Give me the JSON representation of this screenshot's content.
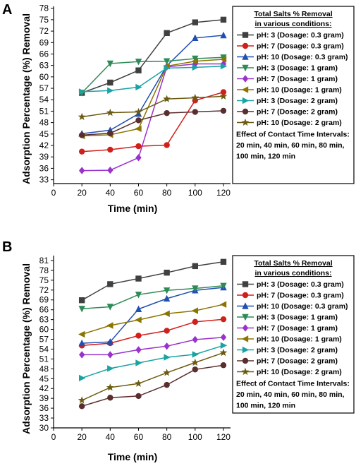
{
  "panels": [
    {
      "label": "A",
      "ylabel": "Adsorption Percentage (%) Removal",
      "xlabel": "Time (min)",
      "legend_title_lines": [
        "Total Salts % Removal",
        "in various conditions:"
      ],
      "legend_note_lines": [
        "Effect of Contact Time Intervals:",
        "20 min, 40 min, 60 min, 80 min,",
        "100 min, 120 min"
      ]
    },
    {
      "label": "B",
      "ylabel": "Adsorption Percentage (%) Removal",
      "xlabel": "Time (min)",
      "legend_title_lines": [
        "Total Salts % Removal",
        "in various conditions:"
      ],
      "legend_note_lines": [
        "Effect of Contact Time Intervals:",
        "20 min, 40 min, 60 min, 80 min,",
        "100 min, 120 min"
      ]
    }
  ],
  "chart_data": [
    {
      "type": "line",
      "xlabel": "Time (min)",
      "ylabel": "Adsorption Percentage (%) Removal",
      "xlim": [
        0,
        125
      ],
      "ylim": [
        32,
        78.5
      ],
      "xticks": [
        0,
        20,
        40,
        60,
        80,
        100,
        120
      ],
      "yticks": [
        33,
        36,
        39,
        42,
        45,
        48,
        51,
        54,
        57,
        60,
        63,
        66,
        69,
        72,
        75,
        78
      ],
      "x": [
        20,
        40,
        60,
        80,
        100,
        120
      ],
      "legend_position": "right",
      "series": [
        {
          "name": "pH: 3 (Dosage: 0.3 gram)",
          "color": "#404040",
          "marker": "square",
          "values": [
            55.8,
            58.5,
            61.7,
            71.5,
            74.3,
            75
          ]
        },
        {
          "name": "pH: 7 (Dosage: 0.3 gram)",
          "color": "#d0201c",
          "marker": "circle",
          "values": [
            40.4,
            40.9,
            41.8,
            42.1,
            53.8,
            56
          ]
        },
        {
          "name": "pH: 10 (Dosage: 0.3 gram)",
          "color": "#1f4fb0",
          "marker": "triangle-up",
          "values": [
            45.1,
            46,
            50.3,
            62.9,
            70.2,
            70.9
          ]
        },
        {
          "name": "pH: 3 (Dosage: 1 gram)",
          "color": "#2e8b57",
          "marker": "triangle-down",
          "values": [
            55.8,
            63.5,
            64,
            64.1,
            64.8,
            65.1
          ]
        },
        {
          "name": "pH: 7 (Dosage: 1 gram)",
          "color": "#9932cc",
          "marker": "diamond",
          "values": [
            35.4,
            35.5,
            38.8,
            62.6,
            63.4,
            63.4
          ]
        },
        {
          "name": "pH: 10 (Dosage: 1 gram)",
          "color": "#8b7500",
          "marker": "triangle-left",
          "values": [
            44.5,
            44.8,
            46.4,
            62.8,
            64.1,
            64.6
          ]
        },
        {
          "name": "pH: 3 (Dosage: 2 gram)",
          "color": "#1aa3a3",
          "marker": "triangle-right",
          "values": [
            56.1,
            56.4,
            57.3,
            62.3,
            62.5,
            62.8
          ]
        },
        {
          "name": "pH: 7 (Dosage: 2 gram)",
          "color": "#5a2e2e",
          "marker": "circle",
          "values": [
            44.7,
            45.2,
            48.6,
            50.5,
            50.8,
            51.1
          ]
        },
        {
          "name": "pH: 10 (Dosage: 2 gram)",
          "color": "#6b5a10",
          "marker": "star",
          "values": [
            49.5,
            50.6,
            50.8,
            54.2,
            54.5,
            54.9
          ]
        }
      ]
    },
    {
      "type": "line",
      "xlabel": "Time (min)",
      "ylabel": "Adsorption Percentage (%) Removal",
      "xlim": [
        0,
        125
      ],
      "ylim": [
        30,
        82.5
      ],
      "xticks": [
        0,
        20,
        40,
        60,
        80,
        100,
        120
      ],
      "yticks": [
        30,
        33,
        36,
        39,
        42,
        45,
        48,
        51,
        54,
        57,
        60,
        63,
        66,
        69,
        72,
        75,
        78,
        81
      ],
      "x": [
        20,
        40,
        60,
        80,
        100,
        120
      ],
      "legend_position": "right",
      "series": [
        {
          "name": "pH: 3 (Dosage: 0.3 gram)",
          "color": "#404040",
          "marker": "square",
          "values": [
            68.9,
            73.8,
            75.5,
            77.3,
            79.3,
            80.6
          ]
        },
        {
          "name": "pH: 7 (Dosage: 0.3 gram)",
          "color": "#d0201c",
          "marker": "circle",
          "values": [
            55.1,
            55.8,
            58.1,
            59.6,
            62.3,
            63.1
          ]
        },
        {
          "name": "pH: 10 (Dosage: 0.3 gram)",
          "color": "#1f4fb0",
          "marker": "triangle-up",
          "values": [
            55.8,
            56.2,
            66.2,
            69.4,
            71.9,
            72.8
          ]
        },
        {
          "name": "pH: 3 (Dosage: 1 gram)",
          "color": "#2e8b57",
          "marker": "triangle-down",
          "values": [
            66.3,
            66.9,
            70.6,
            71.9,
            72.5,
            73.3
          ]
        },
        {
          "name": "pH: 7 (Dosage: 1 gram)",
          "color": "#9932cc",
          "marker": "diamond",
          "values": [
            52.3,
            52.3,
            53.8,
            54.9,
            56.9,
            57.6
          ]
        },
        {
          "name": "pH: 10 (Dosage: 1 gram)",
          "color": "#8b7500",
          "marker": "triangle-left",
          "values": [
            58.5,
            61.2,
            62.9,
            64.8,
            65.7,
            67.6
          ]
        },
        {
          "name": "pH: 3 (Dosage: 2 gram)",
          "color": "#1aa3a3",
          "marker": "triangle-right",
          "values": [
            45.2,
            48.1,
            49.8,
            51.5,
            52.4,
            55.1
          ]
        },
        {
          "name": "pH: 7 (Dosage: 2 gram)",
          "color": "#5a2e2e",
          "marker": "circle",
          "values": [
            36.6,
            39.2,
            39.7,
            43.1,
            47.8,
            49.1
          ]
        },
        {
          "name": "pH: 10 (Dosage: 2 gram)",
          "color": "#6b5a10",
          "marker": "star",
          "values": [
            38.4,
            42.3,
            43.5,
            46.8,
            49.9,
            52.9
          ]
        }
      ]
    }
  ]
}
